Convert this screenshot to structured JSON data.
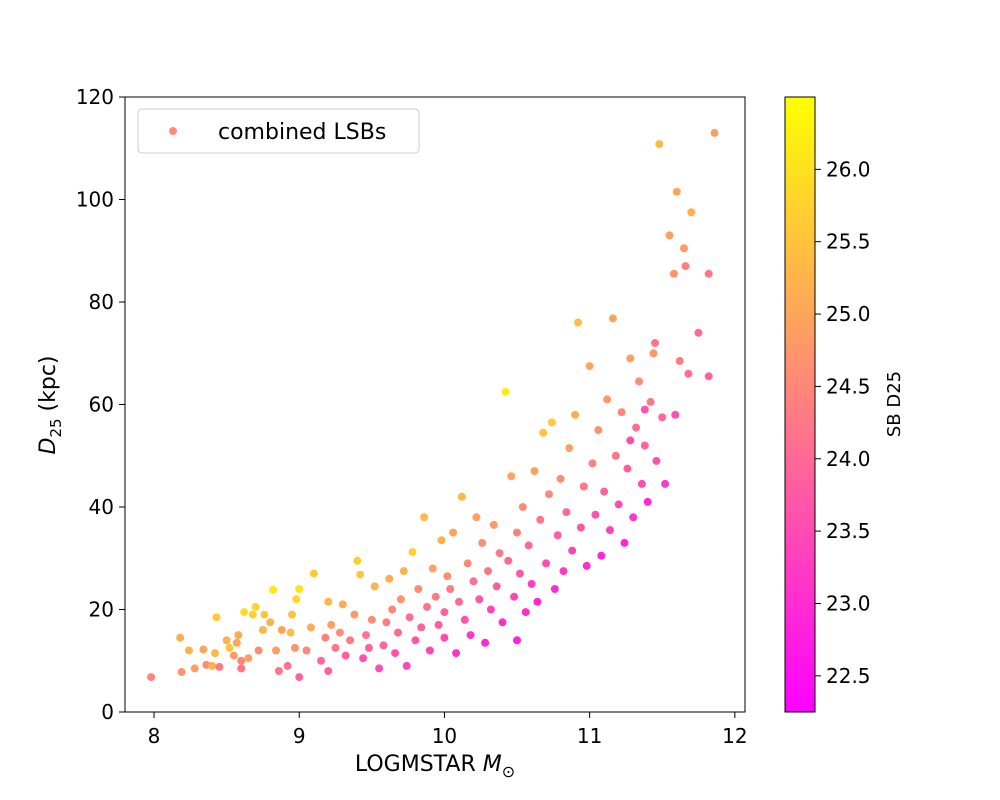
{
  "chart_data": {
    "type": "scatter",
    "xlabel_main": "LOGMSTAR ",
    "xlabel_symbol": "M",
    "xlabel_subscript": "⊙",
    "ylabel_symbol": "D",
    "ylabel_subscript": "25",
    "ylabel_unit": " (kpc)",
    "xlim": [
      7.8,
      12.07
    ],
    "ylim": [
      0,
      120
    ],
    "xticks": [
      8,
      9,
      10,
      11,
      12
    ],
    "yticks": [
      0,
      20,
      40,
      60,
      80,
      100,
      120
    ],
    "legend": {
      "label": "combined LSBs",
      "location": "upper-left",
      "color": "#ff8c78"
    },
    "colorbar": {
      "label": "SB D25",
      "range": [
        22.25,
        26.5
      ],
      "ticks": [
        "22.5",
        "23.0",
        "23.5",
        "24.0",
        "24.5",
        "25.0",
        "25.5",
        "26.0"
      ],
      "tick_values": [
        22.5,
        23.0,
        23.5,
        24.0,
        24.5,
        25.0,
        25.5,
        26.0
      ],
      "colormap": "spring",
      "color_low": "#ff00ff",
      "color_high": "#ffff00"
    },
    "series": [
      {
        "points": [
          [
            7.98,
            6.8,
            24.5
          ],
          [
            8.18,
            14.5,
            25.1
          ],
          [
            8.19,
            7.8,
            24.7
          ],
          [
            8.24,
            12.0,
            25.2
          ],
          [
            8.28,
            8.5,
            24.9
          ],
          [
            8.34,
            12.2,
            25.0
          ],
          [
            8.36,
            9.2,
            24.6
          ],
          [
            8.4,
            9.0,
            25.2
          ],
          [
            8.42,
            11.5,
            25.3
          ],
          [
            8.43,
            18.5,
            25.6
          ],
          [
            8.45,
            8.8,
            24.3
          ],
          [
            8.5,
            14.0,
            25.2
          ],
          [
            8.52,
            12.5,
            25.5
          ],
          [
            8.55,
            11.0,
            24.8
          ],
          [
            8.57,
            13.5,
            25.0
          ],
          [
            8.58,
            15.0,
            25.1
          ],
          [
            8.6,
            10.0,
            24.5
          ],
          [
            8.6,
            8.5,
            24.2
          ],
          [
            8.62,
            19.5,
            25.9
          ],
          [
            8.65,
            10.5,
            24.9
          ],
          [
            8.68,
            19.0,
            25.7
          ],
          [
            8.7,
            20.5,
            25.8
          ],
          [
            8.72,
            12.0,
            24.6
          ],
          [
            8.75,
            16.0,
            25.3
          ],
          [
            8.76,
            19.0,
            25.5
          ],
          [
            8.8,
            17.5,
            25.2
          ],
          [
            8.82,
            23.8,
            26.1
          ],
          [
            8.84,
            12.0,
            24.8
          ],
          [
            8.86,
            8.0,
            24.2
          ],
          [
            8.88,
            16.0,
            25.0
          ],
          [
            8.92,
            9.0,
            24.1
          ],
          [
            8.94,
            15.5,
            25.4
          ],
          [
            8.95,
            19.0,
            25.5
          ],
          [
            8.97,
            12.5,
            24.7
          ],
          [
            8.98,
            22.0,
            25.8
          ],
          [
            9.0,
            24.0,
            26.0
          ],
          [
            9.0,
            6.8,
            23.9
          ],
          [
            9.05,
            12.0,
            24.5
          ],
          [
            9.08,
            16.5,
            25.1
          ],
          [
            9.1,
            27.0,
            25.6
          ],
          [
            9.15,
            10.0,
            24.0
          ],
          [
            9.18,
            14.5,
            24.4
          ],
          [
            9.2,
            8.0,
            23.9
          ],
          [
            9.2,
            21.5,
            25.3
          ],
          [
            9.22,
            17.0,
            24.9
          ],
          [
            9.25,
            12.5,
            24.2
          ],
          [
            9.28,
            15.5,
            24.6
          ],
          [
            9.3,
            21.0,
            25.1
          ],
          [
            9.32,
            11.0,
            23.8
          ],
          [
            9.35,
            14.0,
            24.3
          ],
          [
            9.38,
            19.0,
            24.8
          ],
          [
            9.4,
            29.5,
            25.7
          ],
          [
            9.42,
            26.8,
            25.5
          ],
          [
            9.44,
            10.5,
            23.6
          ],
          [
            9.46,
            15.0,
            24.2
          ],
          [
            9.48,
            12.5,
            23.9
          ],
          [
            9.5,
            18.0,
            24.6
          ],
          [
            9.52,
            24.5,
            25.2
          ],
          [
            9.55,
            8.5,
            23.5
          ],
          [
            9.58,
            13.0,
            23.9
          ],
          [
            9.6,
            17.5,
            24.3
          ],
          [
            9.62,
            26.0,
            25.1
          ],
          [
            9.64,
            20.0,
            24.5
          ],
          [
            9.66,
            11.5,
            23.6
          ],
          [
            9.68,
            15.5,
            24.0
          ],
          [
            9.7,
            22.0,
            24.7
          ],
          [
            9.72,
            27.5,
            25.2
          ],
          [
            9.74,
            9.0,
            23.4
          ],
          [
            9.76,
            18.5,
            24.1
          ],
          [
            9.78,
            31.2,
            25.7
          ],
          [
            9.8,
            14.0,
            23.7
          ],
          [
            9.82,
            24.0,
            24.6
          ],
          [
            9.84,
            16.5,
            23.9
          ],
          [
            9.86,
            38.0,
            25.3
          ],
          [
            9.88,
            20.5,
            24.2
          ],
          [
            9.9,
            12.0,
            23.4
          ],
          [
            9.92,
            28.0,
            24.9
          ],
          [
            9.94,
            22.5,
            24.3
          ],
          [
            9.96,
            17.0,
            23.8
          ],
          [
            9.98,
            33.5,
            25.2
          ],
          [
            10.0,
            19.5,
            23.9
          ],
          [
            10.0,
            14.5,
            23.5
          ],
          [
            10.02,
            26.5,
            24.6
          ],
          [
            10.04,
            24.0,
            24.3
          ],
          [
            10.06,
            35.0,
            25.0
          ],
          [
            10.08,
            11.5,
            23.1
          ],
          [
            10.1,
            21.5,
            24.0
          ],
          [
            10.12,
            42.0,
            25.3
          ],
          [
            10.14,
            18.0,
            23.6
          ],
          [
            10.16,
            29.0,
            24.5
          ],
          [
            10.18,
            15.0,
            23.2
          ],
          [
            10.2,
            25.5,
            24.1
          ],
          [
            10.22,
            38.0,
            24.9
          ],
          [
            10.24,
            22.0,
            23.7
          ],
          [
            10.26,
            33.0,
            24.6
          ],
          [
            10.28,
            13.5,
            22.9
          ],
          [
            10.3,
            27.5,
            24.2
          ],
          [
            10.32,
            20.0,
            23.4
          ],
          [
            10.34,
            36.5,
            24.8
          ],
          [
            10.36,
            24.5,
            23.8
          ],
          [
            10.38,
            31.0,
            24.3
          ],
          [
            10.4,
            17.5,
            23.1
          ],
          [
            10.42,
            62.5,
            26.2
          ],
          [
            10.44,
            29.5,
            24.0
          ],
          [
            10.46,
            46.0,
            25.0
          ],
          [
            10.48,
            22.5,
            23.4
          ],
          [
            10.5,
            35.0,
            24.4
          ],
          [
            10.5,
            14.0,
            22.8
          ],
          [
            10.52,
            27.0,
            23.7
          ],
          [
            10.54,
            40.0,
            24.6
          ],
          [
            10.56,
            19.5,
            23.0
          ],
          [
            10.58,
            32.5,
            24.0
          ],
          [
            10.6,
            25.0,
            23.3
          ],
          [
            10.62,
            47.0,
            24.9
          ],
          [
            10.64,
            21.5,
            22.9
          ],
          [
            10.66,
            37.5,
            24.2
          ],
          [
            10.68,
            54.5,
            25.5
          ],
          [
            10.7,
            29.0,
            23.5
          ],
          [
            10.72,
            42.5,
            24.5
          ],
          [
            10.74,
            56.5,
            25.6
          ],
          [
            10.76,
            24.0,
            23.0
          ],
          [
            10.78,
            34.5,
            23.8
          ],
          [
            10.8,
            45.5,
            24.6
          ],
          [
            10.82,
            27.5,
            23.2
          ],
          [
            10.84,
            39.0,
            24.0
          ],
          [
            10.86,
            51.5,
            24.9
          ],
          [
            10.88,
            31.5,
            23.4
          ],
          [
            10.9,
            58.0,
            25.1
          ],
          [
            10.92,
            76.0,
            25.4
          ],
          [
            10.94,
            36.0,
            23.7
          ],
          [
            10.96,
            44.0,
            24.2
          ],
          [
            10.98,
            28.5,
            23.0
          ],
          [
            11.0,
            67.5,
            25.0
          ],
          [
            11.02,
            48.5,
            24.4
          ],
          [
            11.04,
            38.5,
            23.6
          ],
          [
            11.06,
            55.0,
            24.7
          ],
          [
            11.08,
            30.5,
            22.9
          ],
          [
            11.1,
            43.0,
            23.9
          ],
          [
            11.12,
            61.0,
            24.8
          ],
          [
            11.14,
            35.5,
            23.3
          ],
          [
            11.16,
            76.8,
            25.0
          ],
          [
            11.18,
            50.0,
            24.2
          ],
          [
            11.2,
            40.5,
            23.5
          ],
          [
            11.22,
            58.5,
            24.5
          ],
          [
            11.24,
            33.0,
            22.9
          ],
          [
            11.26,
            47.5,
            23.8
          ],
          [
            11.28,
            69.0,
            24.9
          ],
          [
            11.3,
            38.0,
            23.2
          ],
          [
            11.32,
            55.5,
            24.1
          ],
          [
            11.34,
            64.5,
            24.6
          ],
          [
            11.36,
            44.5,
            23.5
          ],
          [
            11.38,
            52.0,
            23.9
          ],
          [
            11.4,
            41.0,
            23.0
          ],
          [
            11.42,
            60.5,
            24.3
          ],
          [
            11.44,
            70.0,
            24.8
          ],
          [
            11.46,
            49.0,
            23.6
          ],
          [
            11.48,
            110.8,
            25.3
          ],
          [
            11.5,
            57.5,
            24.0
          ],
          [
            11.52,
            44.5,
            23.2
          ],
          [
            11.55,
            93.0,
            24.9
          ],
          [
            11.58,
            85.5,
            24.7
          ],
          [
            11.6,
            101.5,
            25.0
          ],
          [
            11.62,
            68.5,
            24.3
          ],
          [
            11.65,
            90.5,
            24.8
          ],
          [
            11.66,
            87.0,
            24.4
          ],
          [
            11.68,
            66.0,
            24.1
          ],
          [
            11.7,
            97.5,
            25.2
          ],
          [
            11.75,
            74.0,
            24.0
          ],
          [
            11.82,
            85.5,
            24.2
          ],
          [
            11.82,
            65.5,
            23.9
          ],
          [
            11.86,
            113.0,
            24.9
          ],
          [
            11.59,
            58.0,
            23.6
          ],
          [
            11.45,
            72.0,
            24.2
          ],
          [
            11.38,
            59.0,
            23.7
          ],
          [
            11.28,
            53.0,
            23.5
          ]
        ]
      }
    ]
  }
}
